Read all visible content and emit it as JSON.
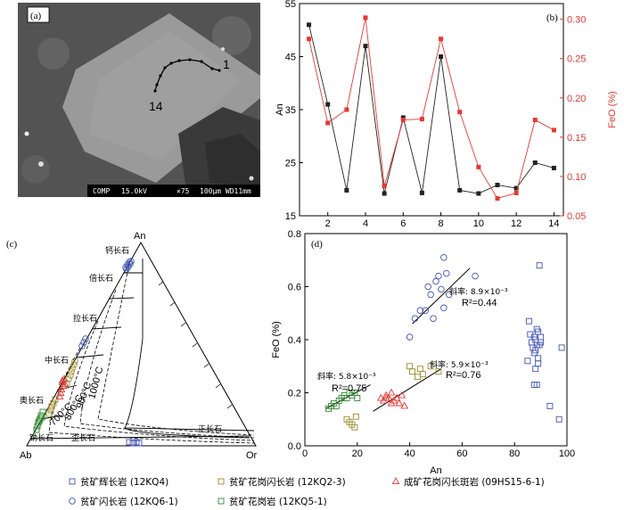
{
  "panels": {
    "a": {
      "label": "(a)",
      "spot_first": "1",
      "spot_last": "14",
      "scalebar": {
        "mode": "COMP",
        "kv": "15.0kV",
        "mag": "×75",
        "scale": "100μm WD11mm"
      }
    },
    "c": {
      "label": "(c)",
      "apex_an": "An",
      "apex_ab": "Ab",
      "apex_or": "Or",
      "fields": [
        "钙长石",
        "倍长石",
        "拉长石",
        "中长石",
        "奥长石",
        "钠长石",
        "歪长石",
        "正长石"
      ],
      "isotherms": [
        "1000°C",
        "900°C",
        "800°C",
        "700°C"
      ]
    }
  },
  "legend": [
    {
      "label": "贫矿辉长岩 (12KQ4)",
      "marker": "square",
      "color": "#3f51b5"
    },
    {
      "label": "贫矿花岗闪长岩 (12KQ2-3)",
      "marker": "square",
      "color": "#9a8a2a"
    },
    {
      "label": "成矿花岗闪长斑岩 (09HS15-6-1)",
      "marker": "triangle",
      "color": "#e53935"
    },
    {
      "label": "贫矿闪长岩 (12KQ6-1)",
      "marker": "circle",
      "color": "#3f51b5"
    },
    {
      "label": "贫矿花岗岩 (12KQ5-1)",
      "marker": "square",
      "color": "#2e8b2e"
    }
  ],
  "chart_data": [
    {
      "type": "line",
      "panel": "(b)",
      "x": [
        1,
        2,
        3,
        4,
        5,
        6,
        7,
        8,
        9,
        10,
        11,
        12,
        13,
        14
      ],
      "xticks": [
        "2",
        "4",
        "6",
        "8",
        "10",
        "12",
        "14"
      ],
      "xlim": [
        0.5,
        14.5
      ],
      "series": [
        {
          "name": "An",
          "axis": "left",
          "color": "#222222",
          "values": [
            51,
            36,
            19.8,
            47,
            19.2,
            33.5,
            19.3,
            45,
            19.8,
            19.2,
            20.8,
            20.2,
            25,
            24
          ]
        },
        {
          "name": "FeO (%)",
          "axis": "right",
          "color": "#e53935",
          "values": [
            0.275,
            0.168,
            0.185,
            0.302,
            0.088,
            0.172,
            0.173,
            0.275,
            0.182,
            0.112,
            0.072,
            0.079,
            0.172,
            0.159
          ]
        }
      ],
      "ylabel_left": "An",
      "ylim_left": [
        15,
        55
      ],
      "yticks_left": [
        "15",
        "25",
        "35",
        "45",
        "55"
      ],
      "ylabel_right": "FeO (%)",
      "ylim_right": [
        0.05,
        0.32
      ],
      "yticks_right": [
        "0.05",
        "0.10",
        "0.15",
        "0.20",
        "0.25",
        "0.30"
      ]
    },
    {
      "type": "scatter",
      "panel": "(d)",
      "xlabel": "An",
      "ylabel": "FeO (%)",
      "xlim": [
        0,
        100
      ],
      "ylim": [
        0,
        0.8
      ],
      "xticks": [
        "0",
        "20",
        "40",
        "60",
        "80",
        "100"
      ],
      "yticks": [
        "0.0",
        "0.2",
        "0.4",
        "0.6",
        "0.8"
      ],
      "series": [
        {
          "name": "贫矿辉长岩 (12KQ4)",
          "marker": "square",
          "color": "#3f51b5",
          "points": [
            [
              85.5,
              0.47
            ],
            [
              86,
              0.42
            ],
            [
              86.5,
              0.39
            ],
            [
              87,
              0.37
            ],
            [
              87.5,
              0.41
            ],
            [
              87.5,
              0.35
            ],
            [
              88,
              0.4
            ],
            [
              88,
              0.36
            ],
            [
              88.5,
              0.44
            ],
            [
              88.5,
              0.38
            ],
            [
              89,
              0.33
            ],
            [
              89,
              0.43
            ],
            [
              89.5,
              0.38
            ],
            [
              90,
              0.39
            ],
            [
              90,
              0.41
            ],
            [
              88,
              0.29
            ],
            [
              89,
              0.31
            ],
            [
              87.5,
              0.23
            ],
            [
              88.5,
              0.23
            ],
            [
              85,
              0.32
            ],
            [
              89.5,
              0.68
            ],
            [
              93.5,
              0.15
            ],
            [
              97,
              0.1
            ],
            [
              98,
              0.37
            ]
          ]
        },
        {
          "name": "贫矿花岗闪长岩 (12KQ2-3)",
          "marker": "square",
          "color": "#9a8a2a",
          "points": [
            [
              16,
              0.1
            ],
            [
              17,
              0.09
            ],
            [
              18,
              0.08
            ],
            [
              19,
              0.07
            ],
            [
              19.5,
              0.11
            ],
            [
              40,
              0.3
            ],
            [
              41,
              0.28
            ],
            [
              43,
              0.26
            ],
            [
              45,
              0.27
            ],
            [
              44,
              0.29
            ],
            [
              48,
              0.3
            ],
            [
              51,
              0.28
            ]
          ]
        },
        {
          "name": "成矿花岗闪长斑岩 (09HS15-6-1)",
          "marker": "triangle",
          "color": "#e53935",
          "points": [
            [
              29,
              0.18
            ],
            [
              30,
              0.17
            ],
            [
              31,
              0.19
            ],
            [
              32,
              0.18
            ],
            [
              33,
              0.2
            ],
            [
              34,
              0.17
            ],
            [
              35,
              0.18
            ],
            [
              36,
              0.16
            ],
            [
              37,
              0.19
            ],
            [
              38,
              0.15
            ],
            [
              33,
              0.16
            ],
            [
              31,
              0.18
            ]
          ]
        },
        {
          "name": "贫矿闪长岩 (12KQ6-1)",
          "marker": "circle",
          "color": "#3f51b5",
          "points": [
            [
              40,
              0.41
            ],
            [
              42,
              0.48
            ],
            [
              44,
              0.51
            ],
            [
              46,
              0.51
            ],
            [
              47,
              0.6
            ],
            [
              48,
              0.57
            ],
            [
              49,
              0.48
            ],
            [
              50,
              0.62
            ],
            [
              51,
              0.64
            ],
            [
              52,
              0.59
            ],
            [
              53,
              0.52
            ],
            [
              53,
              0.71
            ],
            [
              54,
              0.65
            ],
            [
              55,
              0.57
            ],
            [
              65,
              0.64
            ]
          ]
        },
        {
          "name": "贫矿花岗岩 (12KQ5-1)",
          "marker": "square",
          "color": "#2e8b2e",
          "points": [
            [
              9,
              0.14
            ],
            [
              10,
              0.15
            ],
            [
              11,
              0.16
            ],
            [
              12,
              0.15
            ],
            [
              13,
              0.17
            ],
            [
              14,
              0.18
            ],
            [
              15,
              0.19
            ],
            [
              16,
              0.18
            ],
            [
              17,
              0.2
            ],
            [
              18,
              0.19
            ],
            [
              19,
              0.2
            ],
            [
              20,
              0.18
            ]
          ]
        }
      ],
      "trendlines": [
        {
          "from": [
            8,
            0.14
          ],
          "to": [
            25,
            0.23
          ],
          "slope_label": "斜率: 5.8×10⁻³",
          "r2_label": "R²=0.75"
        },
        {
          "from": [
            26,
            0.13
          ],
          "to": [
            52,
            0.29
          ],
          "slope_label": "斜率: 5.9×10⁻³",
          "r2_label": "R²=0.76"
        },
        {
          "from": [
            41,
            0.46
          ],
          "to": [
            63,
            0.67
          ],
          "slope_label": "斜率: 8.9×10⁻³",
          "r2_label": "R²=0.44"
        }
      ]
    }
  ]
}
